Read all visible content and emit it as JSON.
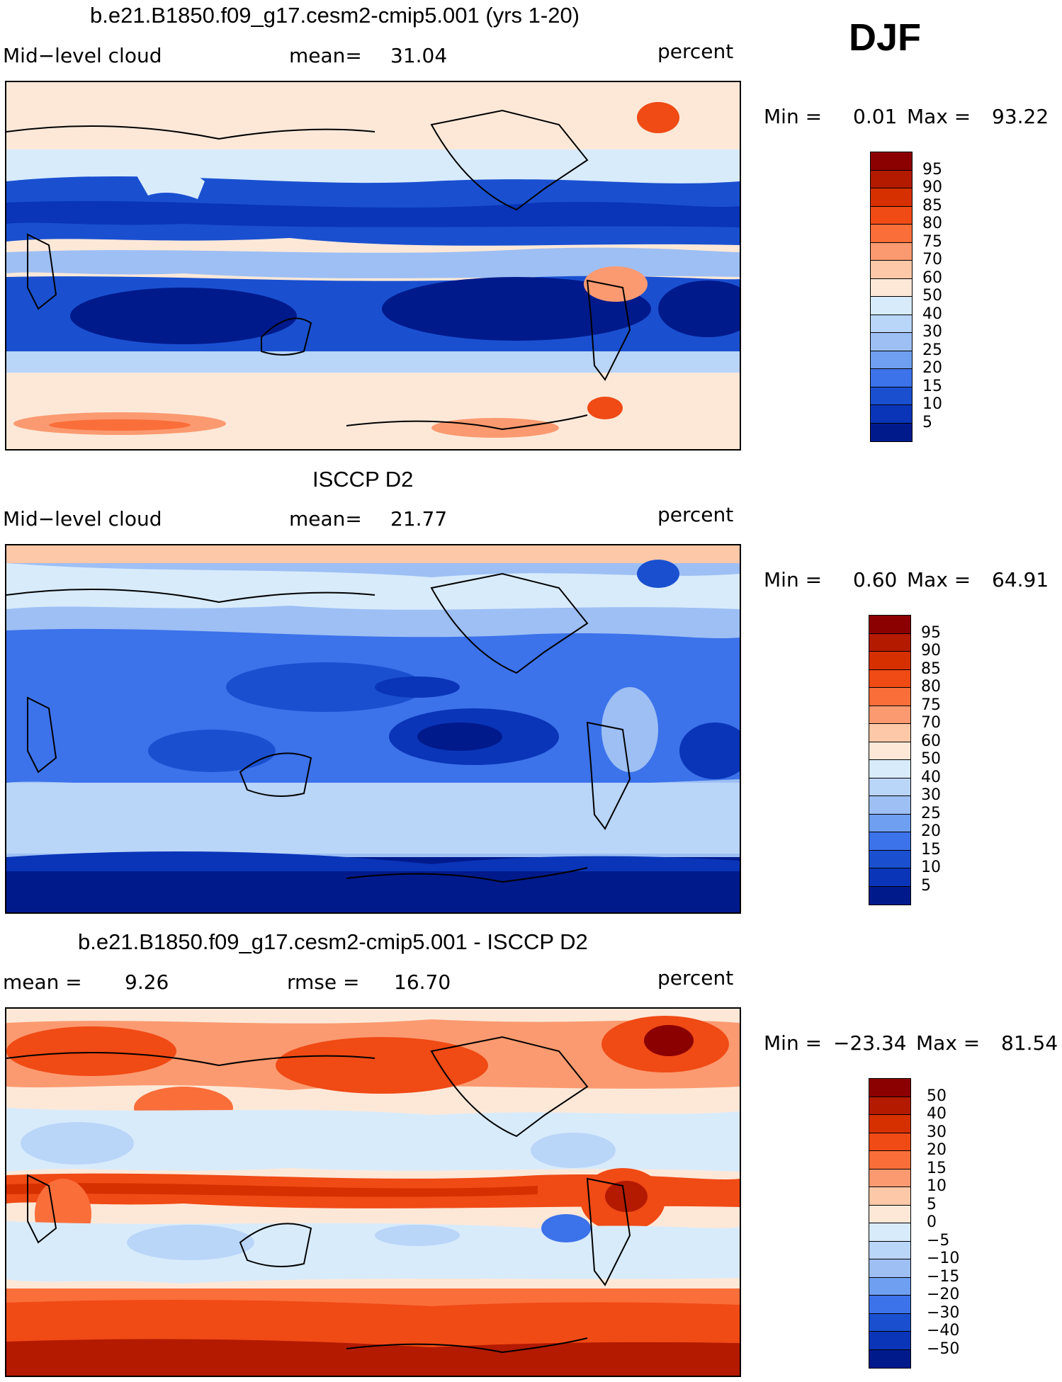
{
  "season": "DJF",
  "panels": [
    {
      "title": "b.e21.B1850.f09_g17.cesm2-cmip5.001 (yrs 1-20)",
      "left_label": "Mid−level cloud",
      "mid_label": "mean=",
      "mid_value": "31.04",
      "units": "percent",
      "min_label": "Min =",
      "min_value": "0.01",
      "max_label": "Max =",
      "max_value": "93.22",
      "colorbar_labels": [
        "95",
        "90",
        "85",
        "80",
        "75",
        "70",
        "60",
        "50",
        "40",
        "30",
        "25",
        "20",
        "15",
        "10",
        "5"
      ],
      "colorbar_colors": [
        "#8b0000",
        "#b31a00",
        "#d63000",
        "#f04a15",
        "#fa6e3a",
        "#fb9a70",
        "#fcc8a8",
        "#fde8d8",
        "#d8ebfb",
        "#b9d5f8",
        "#9dbff4",
        "#6f9ff0",
        "#3c72ea",
        "#1a50d0",
        "#0a35b8",
        "#001a8c"
      ]
    },
    {
      "title": "ISCCP D2",
      "left_label": "Mid−level cloud",
      "mid_label": "mean=",
      "mid_value": "21.77",
      "units": "percent",
      "min_label": "Min =",
      "min_value": "0.60",
      "max_label": "Max =",
      "max_value": "64.91",
      "colorbar_labels": [
        "95",
        "90",
        "85",
        "80",
        "75",
        "70",
        "60",
        "50",
        "40",
        "30",
        "25",
        "20",
        "15",
        "10",
        "5"
      ],
      "colorbar_colors": [
        "#8b0000",
        "#b31a00",
        "#d63000",
        "#f04a15",
        "#fa6e3a",
        "#fb9a70",
        "#fcc8a8",
        "#fde8d8",
        "#d8ebfb",
        "#b9d5f8",
        "#9dbff4",
        "#6f9ff0",
        "#3c72ea",
        "#1a50d0",
        "#0a35b8",
        "#001a8c"
      ]
    },
    {
      "title": "b.e21.B1850.f09_g17.cesm2-cmip5.001 - ISCCP D2",
      "left_label": "mean =",
      "left_value": "9.26",
      "mid_label": "rmse =",
      "mid_value": "16.70",
      "units": "percent",
      "min_label": "Min =",
      "min_value": "−23.34",
      "max_label": "Max =",
      "max_value": "81.54",
      "colorbar_labels": [
        "50",
        "40",
        "30",
        "20",
        "15",
        "10",
        "5",
        "0",
        "−5",
        "−10",
        "−15",
        "−20",
        "−30",
        "−40",
        "−50"
      ],
      "colorbar_colors": [
        "#8b0000",
        "#b31a00",
        "#d63000",
        "#f04a15",
        "#fa6e3a",
        "#fb9a70",
        "#fcc8a8",
        "#fde8d8",
        "#d8ebfb",
        "#b9d5f8",
        "#9dbff4",
        "#6f9ff0",
        "#3c72ea",
        "#1a50d0",
        "#0a35b8",
        "#001a8c"
      ]
    }
  ],
  "map_fields": {
    "panel1": {
      "polar": "#fde8d8",
      "midlat": "#d8ebfb",
      "subtrop": "#0a35b8",
      "equator": "#9dbff4",
      "hot": "#f04a15"
    },
    "panel2": {
      "polar": "#fde8d8",
      "midlat": "#9dbff4",
      "subtrop": "#1a50d0",
      "equator": "#3c72ea",
      "antarctic": "#001a8c"
    },
    "panel3": {
      "polar": "#f04a15",
      "midlat": "#fde8d8",
      "subtrop": "#b9d5f8",
      "equator": "#fa6e3a",
      "antarctic": "#b31a00"
    }
  }
}
